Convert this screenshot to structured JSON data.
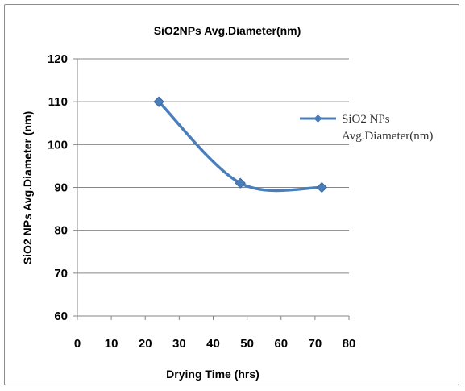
{
  "chart_data": {
    "type": "line",
    "title": "SiO2NPs Avg.Diameter(nm)",
    "xlabel": "Drying Time (hrs)",
    "ylabel": "SiO2 NPs Avg.Diameter (nm)",
    "xlim": [
      0,
      80
    ],
    "ylim": [
      60,
      120
    ],
    "x_ticks": [
      "0",
      "10",
      "20",
      "30",
      "40",
      "50",
      "60",
      "70",
      "80"
    ],
    "y_ticks": [
      "60",
      "70",
      "80",
      "90",
      "100",
      "110",
      "120"
    ],
    "grid": "horizontal",
    "smooth": true,
    "legend_position": "right",
    "series": [
      {
        "name": "SiO2 NPs Avg.Diameter(nm)",
        "legend_lines": [
          "SiO2 NPs",
          "Avg.Diameter(nm)"
        ],
        "color": "#4a7ebb",
        "marker": "diamond",
        "x": [
          24,
          48,
          72
        ],
        "y": [
          110,
          91,
          90
        ]
      }
    ]
  }
}
